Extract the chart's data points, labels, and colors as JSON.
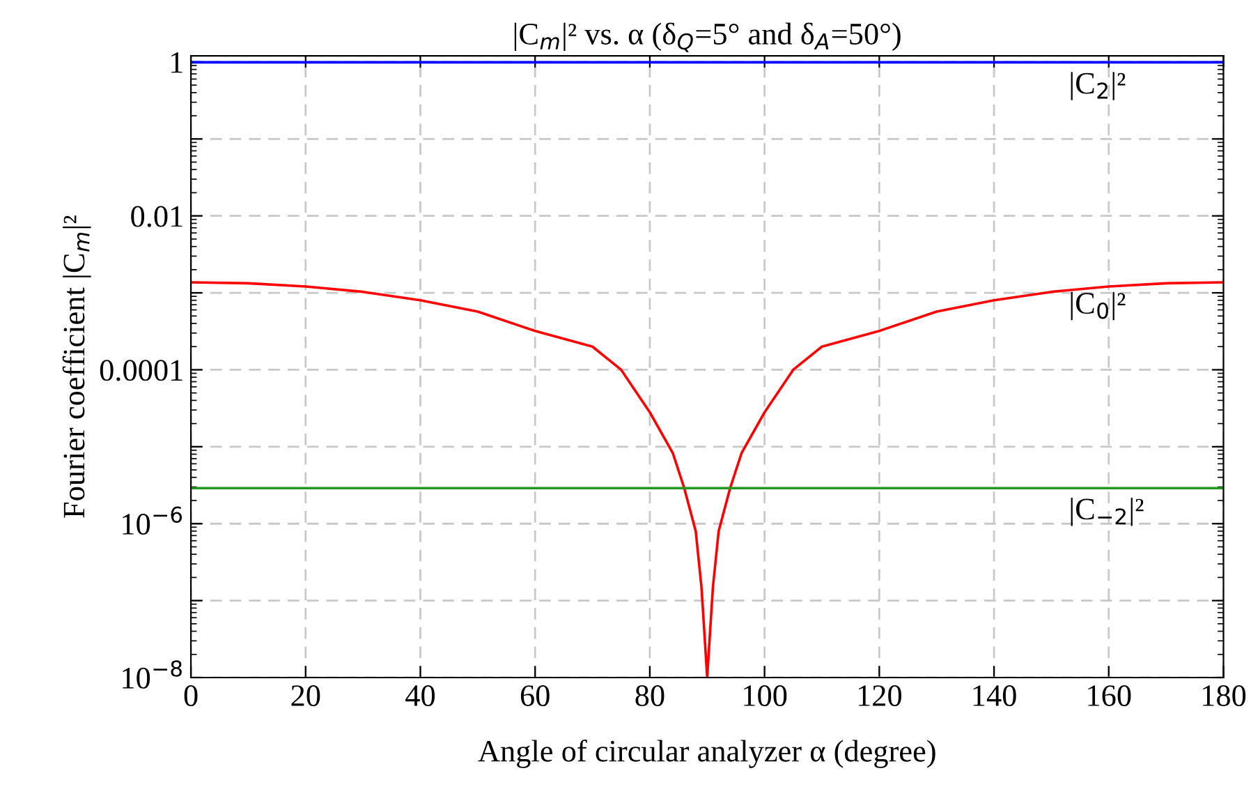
{
  "chart_data": {
    "type": "line",
    "title": "|C$_{m}$|² vs. α (δ$_{Q}$=5° and δ$_{A}$=50°)",
    "xlabel": "Angle of circular analyzer α (degree)",
    "ylabel": "Fourier coefficient |C$_{m}$|²",
    "log": "y",
    "xlim": [
      0,
      180
    ],
    "xticks": [
      0,
      20,
      40,
      60,
      80,
      100,
      120,
      140,
      160,
      180
    ],
    "ylim": [
      1e-08,
      1.2
    ],
    "yticks": [
      1,
      {
        "value": 0.1,
        "label": null
      },
      0.01,
      {
        "value": 0.001,
        "label": null
      },
      0.0001,
      {
        "value": 1e-05,
        "label": null
      },
      {
        "value": 1e-06,
        "label": "10$^{−6}$"
      },
      {
        "value": 1e-07,
        "label": null
      },
      {
        "value": 1e-08,
        "label": "10$^{−8}$"
      }
    ],
    "grid": true,
    "legend": false,
    "marker": "none",
    "line_style": "solid",
    "series": [
      {
        "name": "|C$_{2}$|²",
        "color": "#0000ff",
        "x": [
          0,
          180
        ],
        "values": [
          0.99,
          0.99
        ]
      },
      {
        "name": "|C$_{0}$|²",
        "color": "#ff0000",
        "x": [
          0,
          10,
          20,
          30,
          40,
          50,
          60,
          70,
          75,
          80,
          84,
          86,
          88,
          89,
          89.6,
          90,
          90.4,
          91,
          92,
          94,
          96,
          100,
          105,
          110,
          120,
          130,
          140,
          150,
          160,
          170,
          180
        ],
        "values": [
          0.00137,
          0.00133,
          0.00121,
          0.00103,
          0.0008,
          0.00057,
          0.00032,
          0.0002,
          0.0001,
          2.8e-05,
          8.3e-06,
          2.9e-06,
          8e-07,
          1.5e-07,
          3e-08,
          1e-08,
          3e-08,
          1.5e-07,
          8e-07,
          2.9e-06,
          8.3e-06,
          2.8e-05,
          0.0001,
          0.0002,
          0.00032,
          0.00057,
          0.0008,
          0.00103,
          0.00121,
          0.00133,
          0.00137
        ]
      },
      {
        "name": "|C$_{−2}$|²",
        "color": "#229922",
        "x": [
          0,
          180
        ],
        "values": [
          2.9e-06,
          2.9e-06
        ]
      }
    ]
  }
}
